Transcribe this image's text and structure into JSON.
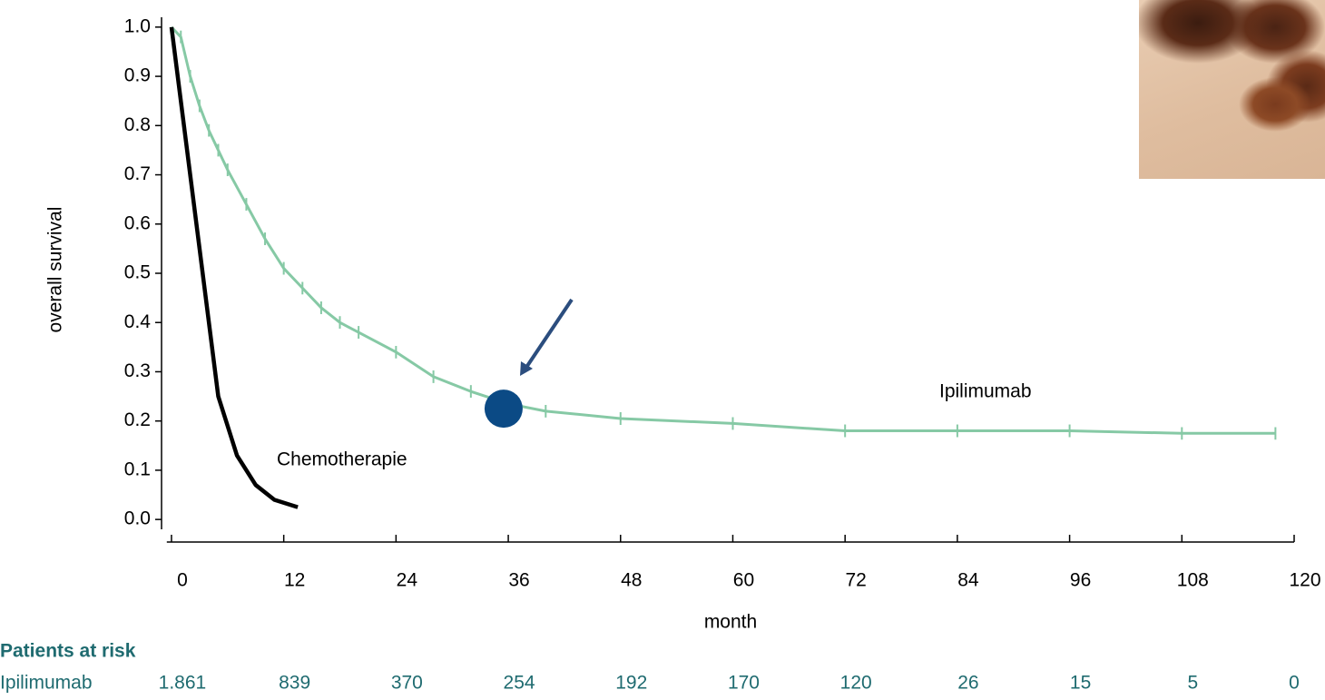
{
  "chart_data": {
    "type": "line",
    "y_label": "overall survival",
    "x_label": "month",
    "xlim": [
      -0.5,
      120
    ],
    "ylim": [
      -0.02,
      1.02
    ],
    "xticks": [
      0,
      12,
      24,
      36,
      48,
      60,
      72,
      84,
      96,
      108,
      120
    ],
    "yticks": [
      {
        "value": 0,
        "label": "0.0"
      },
      0.1,
      0.2,
      0.3,
      0.4,
      0.5,
      0.6,
      0.7,
      0.8,
      0.9,
      {
        "value": 1,
        "label": "1.0"
      }
    ],
    "series": [
      {
        "name": "Ipilimumab",
        "color": "#86c9a5",
        "x": [
          0,
          1,
          2,
          3,
          4,
          5,
          6,
          8,
          10,
          12,
          14,
          16,
          18,
          20,
          24,
          28,
          32,
          36,
          40,
          48,
          60,
          72,
          84,
          96,
          108,
          118
        ],
        "values": [
          1.0,
          0.98,
          0.9,
          0.84,
          0.79,
          0.75,
          0.71,
          0.64,
          0.57,
          0.51,
          0.47,
          0.43,
          0.4,
          0.38,
          0.34,
          0.29,
          0.26,
          0.235,
          0.22,
          0.205,
          0.195,
          0.18,
          0.18,
          0.18,
          0.175,
          0.175
        ]
      },
      {
        "name": "Chemotherapie",
        "color": "#000000",
        "x": [
          0,
          5,
          7,
          9,
          11,
          13.5
        ],
        "values": [
          1.0,
          0.25,
          0.13,
          0.07,
          0.04,
          0.025
        ]
      }
    ],
    "highlight": {
      "x": 35.5,
      "y": 0.225,
      "color": "#0b4a85"
    }
  },
  "risk_table": {
    "title": "Patients at risk",
    "rows": [
      {
        "name": "Ipilimumab",
        "values": [
          1861,
          839,
          370,
          254,
          192,
          170,
          120,
          26,
          15,
          5,
          0
        ],
        "value_labels": [
          "1.861",
          "839",
          "370",
          "254",
          "192",
          "170",
          "120",
          "26",
          "15",
          "5",
          "0"
        ]
      }
    ]
  }
}
